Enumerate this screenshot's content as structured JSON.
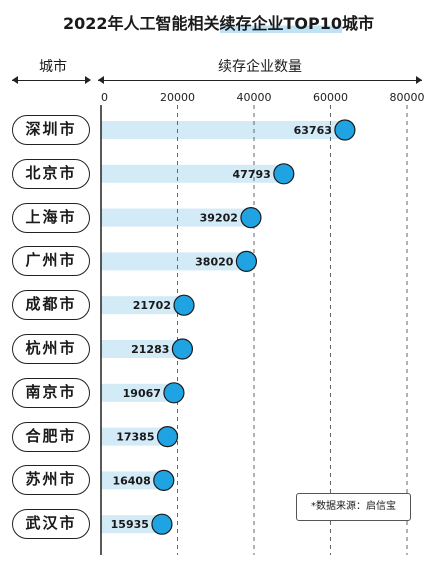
{
  "title": {
    "prefix": "2022年人工智能相关",
    "highlight": "续存企业TOP10",
    "suffix": "城市"
  },
  "headers": {
    "city": "城市",
    "axis": "续存企业数量"
  },
  "source_note": "*数据来源：启信宝",
  "colors": {
    "bar": "#d3eaf7",
    "dot": "#1fa3e3",
    "dot_stroke": "#1a1a1a",
    "grid": "#666666"
  },
  "chart_data": {
    "type": "bar",
    "orientation": "horizontal",
    "categories": [
      "深圳市",
      "北京市",
      "上海市",
      "广州市",
      "成都市",
      "杭州市",
      "南京市",
      "合肥市",
      "苏州市",
      "武汉市"
    ],
    "values": [
      63763,
      47793,
      39202,
      38020,
      21702,
      21283,
      19067,
      17385,
      16408,
      15935
    ],
    "xlim": [
      0,
      80000
    ],
    "xticks": [
      "0",
      "20000",
      "40000",
      "60000",
      "80000"
    ],
    "grid": "vertical dashed"
  }
}
